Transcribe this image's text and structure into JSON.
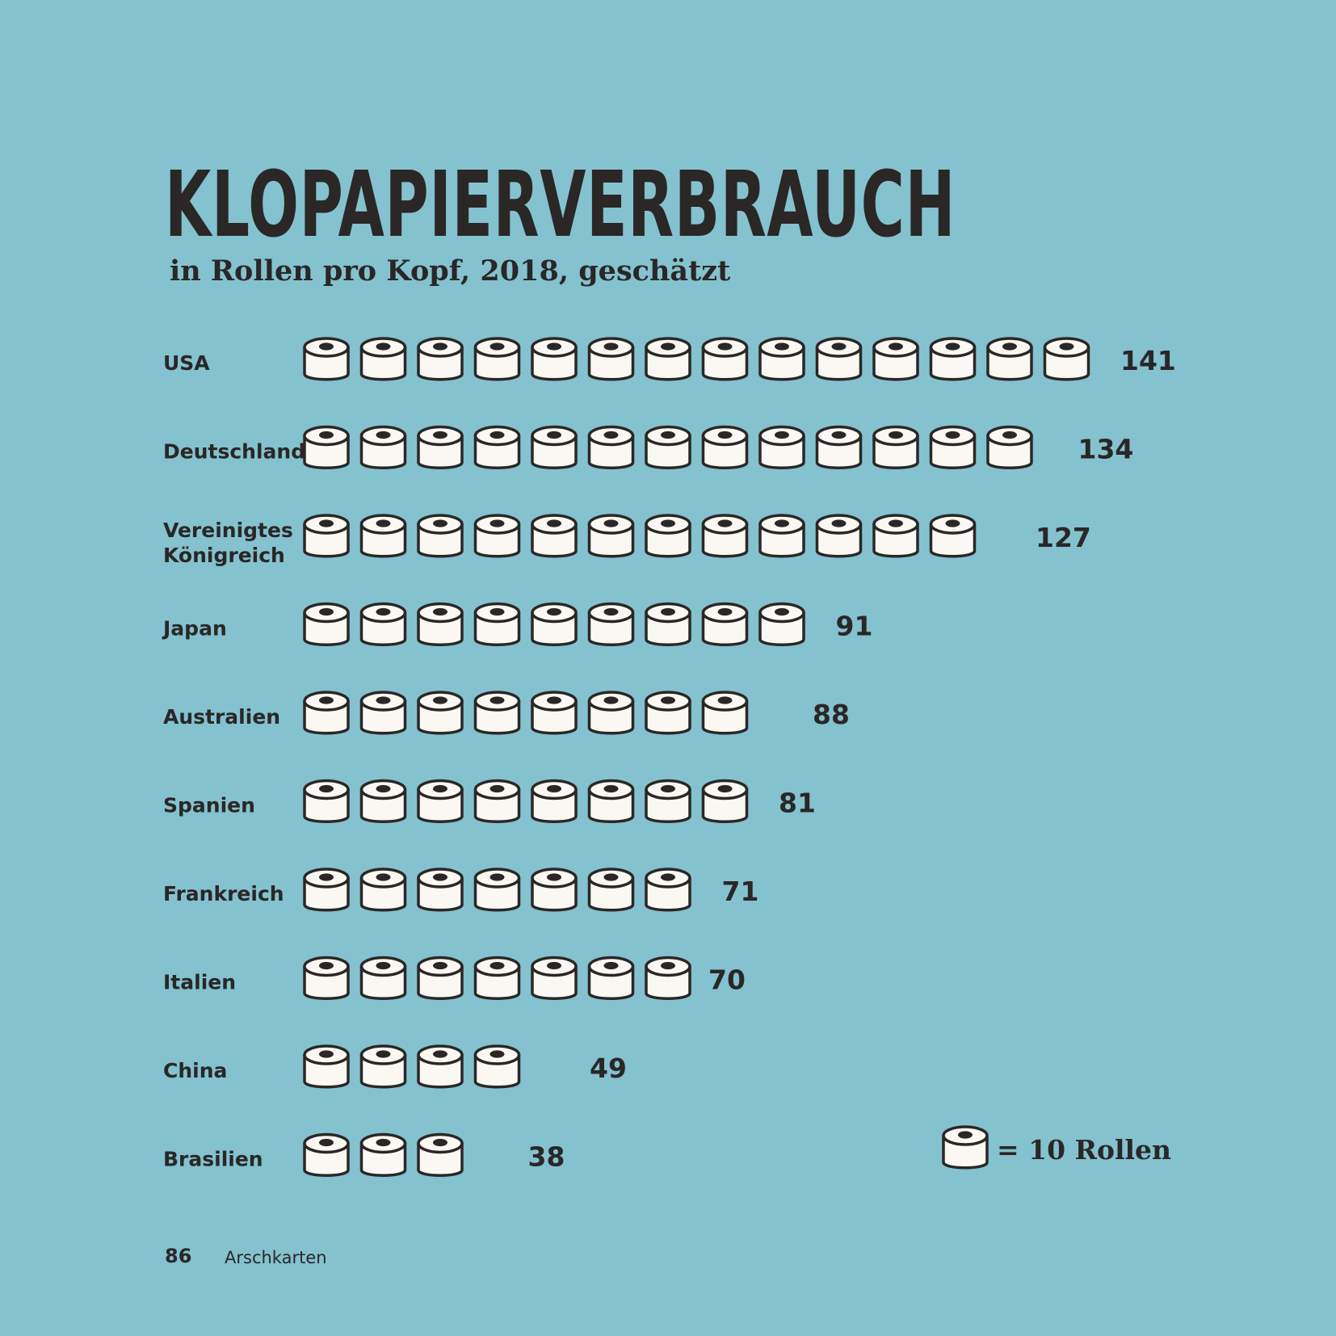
{
  "chart_data": {
    "type": "bar",
    "title": "KLOPAPIERVERBRAUCH",
    "subtitle": "in Rollen pro Kopf, 2018, geschätzt",
    "categories": [
      "USA",
      "Deutschland",
      "Vereinigtes Königreich",
      "Japan",
      "Australien",
      "Spanien",
      "Frankreich",
      "Italien",
      "China",
      "Brasilien"
    ],
    "category_lines": [
      [
        "USA"
      ],
      [
        "Deutschland"
      ],
      [
        "Vereinigtes",
        "Königreich"
      ],
      [
        "Japan"
      ],
      [
        "Australien"
      ],
      [
        "Spanien"
      ],
      [
        "Frankreich"
      ],
      [
        "Italien"
      ],
      [
        "China"
      ],
      [
        "Brasilien"
      ]
    ],
    "values": [
      141,
      134,
      127,
      91,
      88,
      81,
      71,
      70,
      49,
      38
    ],
    "unit_per_icon": 10,
    "icon": "toilet-paper-roll-icon",
    "legend": {
      "label": "= 10 Rollen",
      "position": "bottom-right"
    },
    "orientation": "horizontal"
  },
  "footer": {
    "page_number": "86",
    "book_title": "Arschkarten"
  },
  "colors": {
    "background": "#84c2cf",
    "ink": "#2a2726",
    "roll": "#fbf8f3"
  }
}
